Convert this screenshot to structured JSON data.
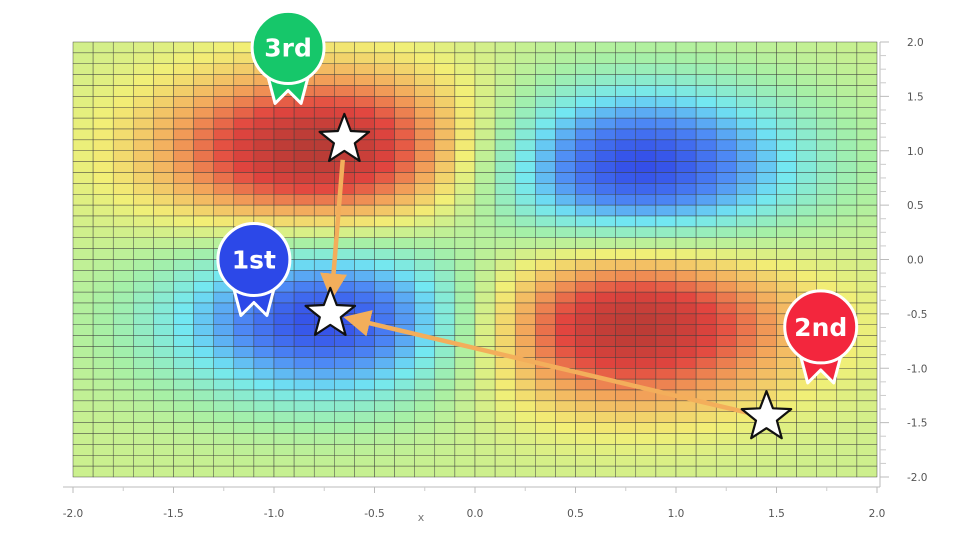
{
  "chart_data": {
    "type": "heatmap",
    "title": "",
    "xlabel": "x",
    "ylabel": "",
    "xlim": [
      -2.0,
      2.0
    ],
    "ylim": [
      -2.0,
      2.0
    ],
    "x_ticks": [
      "-2.0",
      "-1.5",
      "-1.0",
      "-0.5",
      "0.0",
      "0.5",
      "1.0",
      "1.5",
      "2.0"
    ],
    "y_ticks": [
      "2.0",
      "1.5",
      "1.0",
      "0.5",
      "0.0",
      "-0.5",
      "-1.0",
      "-1.5",
      "-2.0"
    ],
    "grid": {
      "cols": 40,
      "rows": 40
    },
    "surface": {
      "peaks": [
        {
          "x": -0.75,
          "y": 1.0,
          "sign": 1
        },
        {
          "x": 0.75,
          "y": -0.6,
          "sign": 1
        },
        {
          "x": -0.7,
          "y": -0.55,
          "sign": -1
        },
        {
          "x": 0.8,
          "y": 0.85,
          "sign": -1
        }
      ],
      "sigma_x": 0.58,
      "sigma_y": 0.52
    },
    "colorscale": [
      "#2f45e6",
      "#4d88f5",
      "#72e7f2",
      "#a6f0a6",
      "#f2ef76",
      "#f3a55a",
      "#e2453f",
      "#b23a34"
    ],
    "markers": [
      {
        "x": -0.65,
        "y": 1.1
      },
      {
        "x": -0.72,
        "y": -0.5
      },
      {
        "x": 1.45,
        "y": -1.45
      }
    ],
    "path": [
      {
        "from": 0,
        "to": 1
      },
      {
        "from": 2,
        "to": 1
      }
    ],
    "path_color": "#f3ae5b",
    "badges": [
      {
        "label": "1st",
        "color": "#2c48e8",
        "x": -1.1,
        "y": -0.0
      },
      {
        "label": "2nd",
        "color": "#f3263d",
        "x": 1.72,
        "y": -0.62
      },
      {
        "label": "3rd",
        "color": "#16c76a",
        "x": -0.93,
        "y": 1.95
      }
    ]
  }
}
